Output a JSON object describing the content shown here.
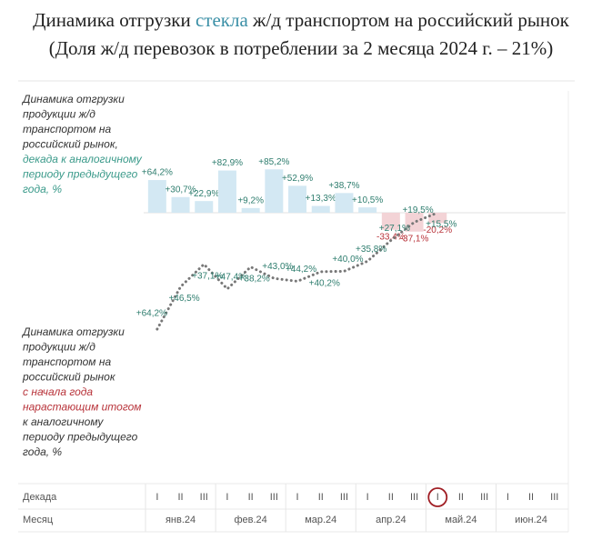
{
  "header": {
    "title_parts": [
      "Динамика отгрузки ",
      "стекла",
      " ж/д транспортом на российский рынок"
    ],
    "title_colors": [
      "#222222",
      "#3a8fa6",
      "#222222"
    ],
    "subtitle": "(Доля ж/д перевозок в потреблении за 2 месяца 2024 г. – 21%)"
  },
  "chart_data": [
    {
      "type": "bar",
      "annotation": [
        {
          "text": "Динамика отгрузки",
          "color": "#333333"
        },
        {
          "text": "продукции ж/д",
          "color": "#333333"
        },
        {
          "text": "транспортом на",
          "color": "#333333"
        },
        {
          "text": "российский рынок,",
          "color": "#333333"
        },
        {
          "text": "декада к аналогичному",
          "color": "#3a9a8a"
        },
        {
          "text": "периоду предыдущего",
          "color": "#3a9a8a"
        },
        {
          "text": "года, %",
          "color": "#3a9a8a"
        }
      ],
      "values": [
        64.2,
        30.7,
        22.9,
        82.9,
        9.2,
        85.2,
        52.9,
        13.3,
        38.7,
        10.5,
        -33.4,
        -37.1,
        -20.2
      ],
      "value_labels": [
        "+64,2%",
        "+30,7%",
        "+22,9%",
        "+82,9%",
        "+9,2%",
        "+85,2%",
        "+52,9%",
        "+13,3%",
        "+38,7%",
        "+10,5%",
        "-33,4%",
        "-37,1%",
        "-20,2%"
      ],
      "color": "#d3e8f3",
      "negative_color": "#f3d3d6"
    },
    {
      "type": "line",
      "annotation": [
        {
          "text": "Динамика отгрузки",
          "color": "#333333"
        },
        {
          "text": "продукции ж/д",
          "color": "#333333"
        },
        {
          "text": "транспортом на",
          "color": "#333333"
        },
        {
          "text": "российский рынок",
          "color": "#333333"
        },
        {
          "text": "с начала года",
          "color": "#b8333a"
        },
        {
          "text": "нарастающим итогом",
          "color": "#b8333a"
        },
        {
          "text": "к аналогичному",
          "color": "#333333"
        },
        {
          "text": "периоду предыдущего",
          "color": "#333333"
        },
        {
          "text": "года, %",
          "color": "#333333"
        }
      ],
      "values": [
        64.2,
        46.5,
        37.1,
        47.4,
        38.2,
        43.0,
        44.2,
        40.2,
        40.0,
        35.8,
        27.1,
        19.5,
        15.5
      ],
      "value_labels": [
        "+64,2%",
        "+46,5%",
        "+37,1%",
        "+47,4%",
        "+38,2%",
        "+43,0%",
        "+44,2%",
        "+40,2%",
        "+40,0%",
        "+35,8%",
        "+27,1%",
        "+19,5%",
        "+15,5%"
      ],
      "color": "#777777"
    }
  ],
  "axis": {
    "row_labels": [
      "Декада",
      "Месяц"
    ],
    "decades": [
      "I",
      "II",
      "III"
    ],
    "months": [
      "янв.24",
      "фев.24",
      "мар.24",
      "апр.24",
      "май.24",
      "июн.24"
    ]
  }
}
